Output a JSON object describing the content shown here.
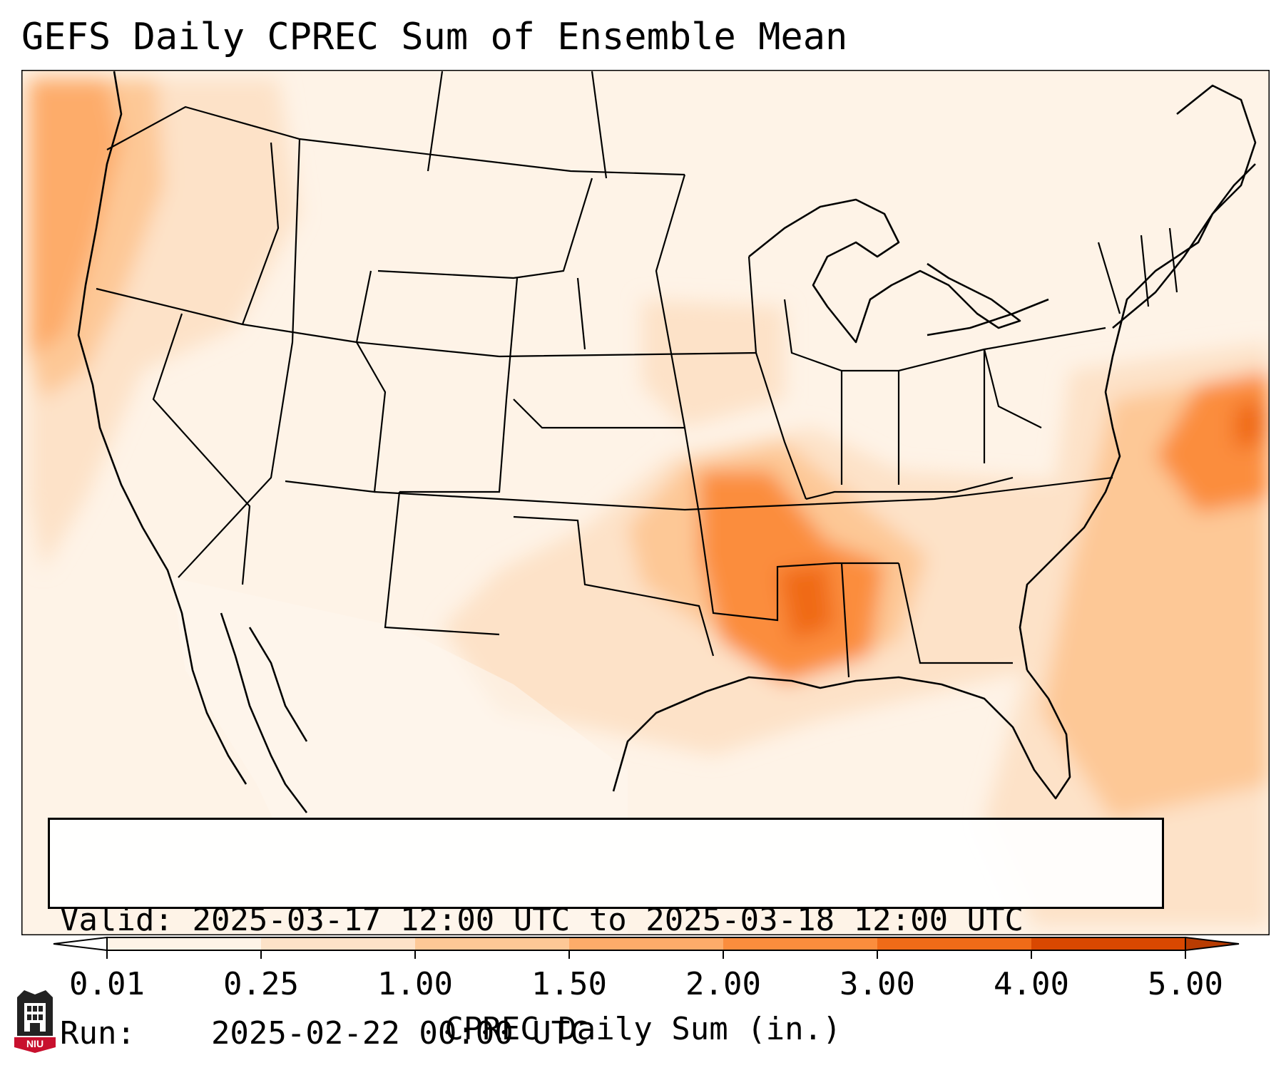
{
  "title": "GEFS Daily CPREC Sum of Ensemble Mean",
  "info": {
    "valid_label": "Valid:",
    "valid_value": "2025-03-17 12:00 UTC to 2025-03-18 12:00 UTC",
    "run_label": "Run:",
    "run_value": "2025-02-22 00:00 UTC"
  },
  "colorbar": {
    "label": "CPREC Daily Sum (in.)",
    "ticks": [
      "0.01",
      "0.25",
      "1.00",
      "1.50",
      "2.00",
      "3.00",
      "4.00",
      "5.00"
    ],
    "colors": [
      "#fef3e7",
      "#fde2c8",
      "#fdc896",
      "#fdac6a",
      "#fb8d3d",
      "#f06b18",
      "#d94801"
    ],
    "extend_low_color": "#ffffff",
    "extend_high_color": "#b83c02"
  },
  "logo": {
    "text": "NIU",
    "colors": {
      "red": "#c8102e",
      "dark": "#222222"
    }
  },
  "map_icon": "conus-state-map"
}
